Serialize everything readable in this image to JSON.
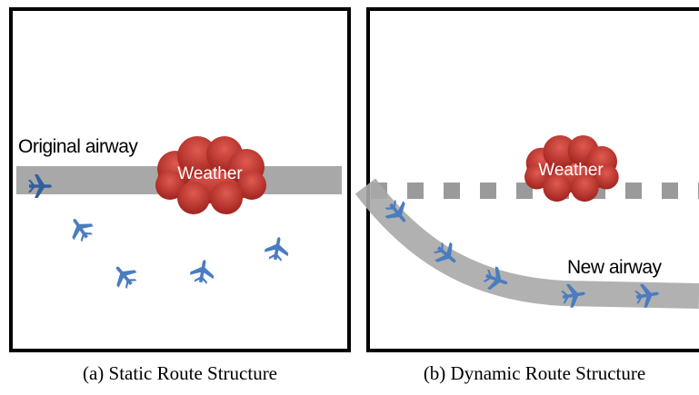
{
  "panels": [
    {
      "airway_label": "Original airway",
      "weather_label": "Weather",
      "caption": "(a) Static Route Structure"
    },
    {
      "weather_label": "Weather",
      "airway_label": "New airway",
      "caption": "(b) Dynamic Route Structure"
    }
  ]
}
